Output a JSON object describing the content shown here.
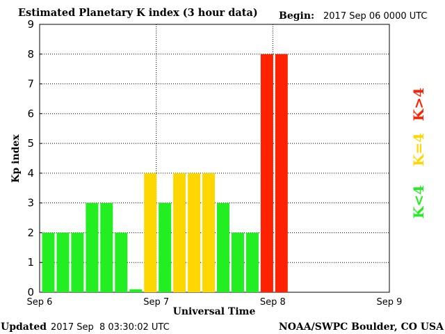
{
  "header": {
    "title": "Estimated Planetary K index (3 hour data)",
    "begin_label": "Begin:",
    "begin_value": "2017 Sep 06 0000 UTC"
  },
  "footer": {
    "updated_label": "Updated",
    "updated_value": "2017 Sep  8 03:30:02 UTC",
    "source": "NOAA/SWPC Boulder, CO USA"
  },
  "legend": {
    "high": "K>4",
    "equal": "K=4",
    "low": "K<4"
  },
  "colors": {
    "low": "#22ee22",
    "equal": "#ffd700",
    "high": "#ff2200",
    "grid": "#000000",
    "axis": "#000000"
  },
  "chart_data": {
    "type": "bar",
    "xlabel": "Universal Time",
    "ylabel": "Kp index",
    "ylim": [
      0,
      9
    ],
    "y_ticks": [
      "0",
      "1",
      "2",
      "3",
      "4",
      "5",
      "6",
      "7",
      "8",
      "9"
    ],
    "x_tick_labels": [
      "Sep 6",
      "Sep 7",
      "Sep 8",
      "Sep 9"
    ],
    "x_range_days": 3,
    "bar_interval_hours": 3,
    "grid": "dotted",
    "values": [
      2,
      2,
      2,
      3,
      3,
      2,
      0.1,
      4,
      3,
      4,
      4,
      4,
      3,
      2,
      2,
      8,
      8
    ]
  }
}
